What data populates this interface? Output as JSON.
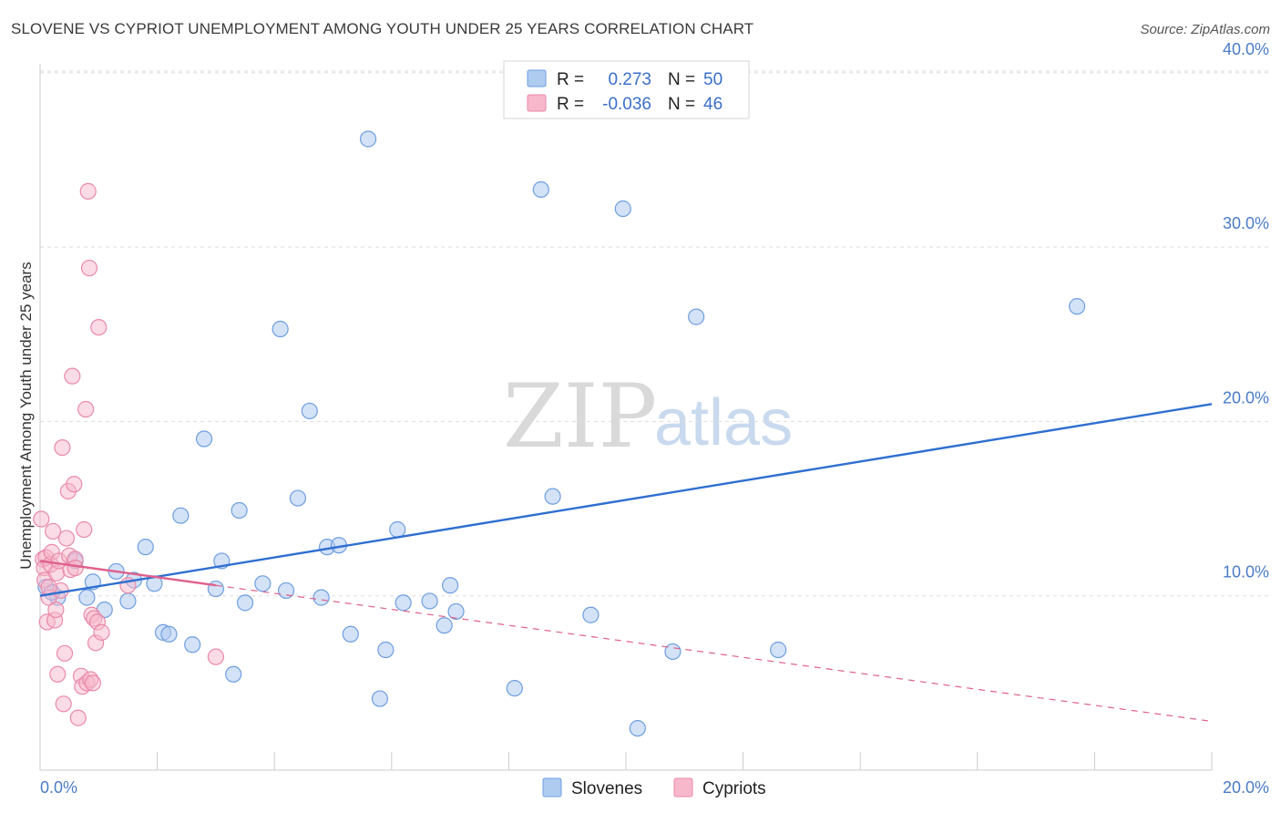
{
  "title": "SLOVENE VS CYPRIOT UNEMPLOYMENT AMONG YOUTH UNDER 25 YEARS CORRELATION CHART",
  "source": "Source: ZipAtlas.com",
  "watermark": {
    "zip": "ZIP",
    "atlas": "atlas"
  },
  "legend": {
    "rows": [
      {
        "r_label": "R =",
        "r_value": "0.273",
        "n_label": "N =",
        "n_value": "50"
      },
      {
        "r_label": "R =",
        "r_value": "-0.036",
        "n_label": "N =",
        "n_value": "46"
      }
    ]
  },
  "bottom_legend": [
    "Slovenes",
    "Cypriots"
  ],
  "colors": {
    "slovene_fill": "#aecbf0",
    "slovene_stroke": "#6e9ee0",
    "slovene_line": "#2f6fd0",
    "cypriot_fill": "#f7b8cc",
    "cypriot_stroke": "#e98aa9",
    "cypriot_line": "#e0608c",
    "tick_text": "#4a7cc7",
    "grid": "#dddddd"
  },
  "chart_data": {
    "type": "scatter",
    "title": "SLOVENE VS CYPRIOT UNEMPLOYMENT AMONG YOUTH UNDER 25 YEARS CORRELATION CHART",
    "xlabel": "",
    "ylabel": "Unemployment Among Youth under 25 years",
    "xlim": [
      0,
      20
    ],
    "ylim": [
      0,
      42
    ],
    "x_tick_labels": [
      "0.0%",
      "20.0%"
    ],
    "y_ticks": [
      10,
      20,
      30,
      40
    ],
    "y_tick_labels": [
      "10.0%",
      "20.0%",
      "30.0%",
      "40.0%"
    ],
    "grid": true,
    "legend_position": "top-center",
    "series": [
      {
        "name": "Slovenes",
        "points": [
          [
            0.1,
            10.5
          ],
          [
            0.3,
            9.9
          ],
          [
            0.6,
            12.0
          ],
          [
            0.8,
            9.9
          ],
          [
            0.9,
            10.8
          ],
          [
            1.1,
            9.2
          ],
          [
            1.3,
            11.4
          ],
          [
            1.5,
            9.7
          ],
          [
            1.6,
            10.9
          ],
          [
            1.8,
            12.8
          ],
          [
            1.95,
            10.7
          ],
          [
            2.1,
            7.9
          ],
          [
            2.2,
            7.8
          ],
          [
            2.4,
            14.6
          ],
          [
            2.6,
            7.2
          ],
          [
            2.8,
            19.0
          ],
          [
            3.0,
            10.4
          ],
          [
            3.1,
            12.0
          ],
          [
            3.3,
            5.5
          ],
          [
            3.4,
            14.9
          ],
          [
            3.5,
            9.6
          ],
          [
            3.8,
            10.7
          ],
          [
            4.1,
            25.3
          ],
          [
            4.2,
            10.3
          ],
          [
            4.4,
            15.6
          ],
          [
            4.6,
            20.6
          ],
          [
            4.8,
            9.9
          ],
          [
            4.9,
            12.8
          ],
          [
            5.1,
            12.9
          ],
          [
            5.3,
            7.8
          ],
          [
            5.6,
            36.2
          ],
          [
            5.8,
            4.1
          ],
          [
            5.9,
            6.9
          ],
          [
            6.1,
            13.8
          ],
          [
            6.2,
            9.6
          ],
          [
            6.65,
            9.7
          ],
          [
            6.9,
            8.3
          ],
          [
            7.0,
            10.6
          ],
          [
            7.1,
            9.1
          ],
          [
            8.1,
            4.7
          ],
          [
            8.55,
            33.3
          ],
          [
            8.75,
            15.7
          ],
          [
            9.4,
            8.9
          ],
          [
            9.95,
            32.2
          ],
          [
            10.2,
            2.4
          ],
          [
            10.8,
            6.8
          ],
          [
            11.2,
            26.0
          ],
          [
            12.6,
            6.9
          ],
          [
            17.7,
            26.6
          ],
          [
            0.2,
            10.2
          ]
        ]
      },
      {
        "name": "Cypriots",
        "points": [
          [
            0.02,
            14.4
          ],
          [
            0.05,
            12.1
          ],
          [
            0.07,
            11.6
          ],
          [
            0.08,
            10.9
          ],
          [
            0.1,
            12.2
          ],
          [
            0.12,
            8.5
          ],
          [
            0.15,
            9.9
          ],
          [
            0.18,
            11.8
          ],
          [
            0.2,
            12.5
          ],
          [
            0.22,
            13.7
          ],
          [
            0.25,
            8.6
          ],
          [
            0.27,
            9.2
          ],
          [
            0.28,
            11.3
          ],
          [
            0.3,
            5.5
          ],
          [
            0.32,
            12.0
          ],
          [
            0.35,
            10.3
          ],
          [
            0.38,
            18.5
          ],
          [
            0.4,
            3.8
          ],
          [
            0.42,
            6.7
          ],
          [
            0.45,
            13.3
          ],
          [
            0.48,
            16.0
          ],
          [
            0.5,
            12.3
          ],
          [
            0.52,
            11.5
          ],
          [
            0.55,
            22.6
          ],
          [
            0.58,
            16.4
          ],
          [
            0.6,
            12.1
          ],
          [
            0.65,
            3.0
          ],
          [
            0.7,
            5.4
          ],
          [
            0.72,
            4.8
          ],
          [
            0.75,
            13.8
          ],
          [
            0.78,
            20.7
          ],
          [
            0.8,
            5.0
          ],
          [
            0.82,
            33.2
          ],
          [
            0.84,
            28.8
          ],
          [
            0.86,
            5.2
          ],
          [
            0.88,
            8.9
          ],
          [
            0.9,
            5.0
          ],
          [
            0.92,
            8.7
          ],
          [
            0.95,
            7.3
          ],
          [
            0.98,
            8.5
          ],
          [
            1.0,
            25.4
          ],
          [
            1.05,
            7.9
          ],
          [
            1.5,
            10.6
          ],
          [
            3.0,
            6.5
          ],
          [
            0.15,
            10.5
          ],
          [
            0.6,
            11.6
          ]
        ]
      }
    ],
    "trend_lines": [
      {
        "series": "Slovenes",
        "x": [
          0,
          20
        ],
        "y": [
          10.0,
          21.0
        ],
        "style": "solid"
      },
      {
        "series": "Cypriots",
        "x": [
          0,
          3.0
        ],
        "y": [
          12.0,
          10.6
        ],
        "style": "solid"
      },
      {
        "series": "Cypriots",
        "x": [
          3.0,
          20
        ],
        "y": [
          10.6,
          2.8
        ],
        "style": "dashed"
      }
    ]
  }
}
